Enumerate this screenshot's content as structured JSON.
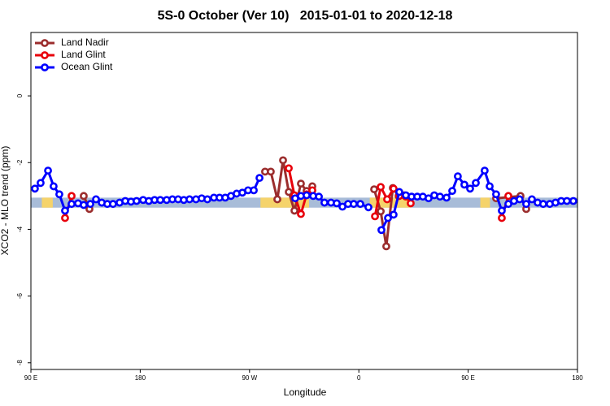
{
  "chart_data": {
    "type": "line",
    "title": "5S-0 October (Ver 10)   2015-01-01 to 2020-12-18",
    "xlabel": "Longitude",
    "ylabel": "XCO2 - MLO trend (ppm)",
    "xlim": [
      90,
      540
    ],
    "ylim": [
      -8.2,
      1.9
    ],
    "xticks": [
      {
        "value": 90,
        "label": "90 E"
      },
      {
        "value": 180,
        "label": "180"
      },
      {
        "value": 270,
        "label": "90 W"
      },
      {
        "value": 360,
        "label": "0"
      },
      {
        "value": 450,
        "label": "90 E"
      },
      {
        "value": 540,
        "label": "180"
      }
    ],
    "yticks": [
      0,
      -2,
      -4,
      -6,
      -8
    ],
    "legend": "top-left",
    "band": [
      -3.35,
      -3.05
    ],
    "band_color": "#a8bcd8",
    "highlights": [
      [
        99,
        108
      ],
      [
        279,
        319
      ],
      [
        369,
        403
      ],
      [
        460,
        468
      ]
    ],
    "highlight_color": "#f5d36b",
    "series": [
      {
        "name": "Land Nadir",
        "color": "#9b2d2d",
        "x": [
          133.5,
          138.2,
          null,
          282.8,
          287.5,
          292.9,
          297.6,
          302.3,
          307.0,
          312.3,
          317.0,
          321.7,
          null,
          372.6,
          378.0,
          382.6,
          388.0,
          392.7,
          397.4,
          null,
          473.0,
          493.1,
          497.8
        ],
        "values": [
          -3.0,
          -3.39,
          null,
          -2.27,
          -2.27,
          -3.1,
          -1.93,
          -2.88,
          -3.44,
          -2.63,
          -2.85,
          -2.71,
          null,
          -2.8,
          -3.46,
          -4.51,
          -2.76,
          -3.0,
          -2.98,
          null,
          -3.07,
          -3.0,
          -3.39
        ]
      },
      {
        "name": "Land Glint",
        "color": "#e8000b",
        "x": [
          118.1,
          123.5,
          null,
          302.3,
          307.0,
          312.3,
          317.0,
          321.7,
          null,
          373.3,
          378.0,
          383.3,
          388.6,
          393.3,
          398.7,
          402.7,
          null,
          477.7,
          483.1
        ],
        "values": [
          -3.66,
          -3.0,
          null,
          -2.17,
          -2.98,
          -3.54,
          -2.95,
          -2.83,
          null,
          -3.61,
          -2.73,
          -3.1,
          -2.78,
          -3.0,
          -3.02,
          -3.22,
          null,
          -3.66,
          -3.0
        ]
      },
      {
        "name": "Ocean Glint",
        "color": "#0000ff",
        "x": [
          93.3,
          98.0,
          104.1,
          108.7,
          113.4,
          118.1,
          123.5,
          128.8,
          133.5,
          138.9,
          143.6,
          148.3,
          152.9,
          157.6,
          163.0,
          167.7,
          172.4,
          177.0,
          182.4,
          187.1,
          191.8,
          196.5,
          201.8,
          206.5,
          211.2,
          215.9,
          220.6,
          225.9,
          230.6,
          235.3,
          240.7,
          245.3,
          250.0,
          254.7,
          259.4,
          264.1,
          268.8,
          273.5,
          278.2,
          null,
          307.6,
          312.3,
          317.0,
          322.4,
          327.1,
          331.7,
          337.1,
          341.8,
          346.5,
          351.1,
          355.8,
          361.2,
          367.9,
          null,
          378.6,
          384.0,
          388.6,
          393.3,
          398.7,
          403.4,
          408.1,
          412.7,
          417.4,
          422.1,
          426.8,
          432.2,
          436.9,
          441.5,
          446.9,
          451.6,
          456.3,
          463.6,
          467.7,
          473.0,
          477.7,
          483.1,
          487.7,
          492.4,
          497.8,
          502.5,
          507.2,
          511.8,
          517.2,
          521.9,
          526.6,
          531.3,
          536.6
        ],
        "values": [
          -2.78,
          -2.61,
          -2.24,
          -2.71,
          -2.95,
          -3.44,
          -3.24,
          -3.22,
          -3.27,
          -3.24,
          -3.1,
          -3.2,
          -3.24,
          -3.24,
          -3.2,
          -3.15,
          -3.17,
          -3.15,
          -3.12,
          -3.15,
          -3.12,
          -3.12,
          -3.12,
          -3.1,
          -3.1,
          -3.12,
          -3.1,
          -3.1,
          -3.07,
          -3.1,
          -3.05,
          -3.05,
          -3.05,
          -3.0,
          -2.93,
          -2.9,
          -2.83,
          -2.83,
          -2.46,
          null,
          -3.07,
          -3.0,
          -2.98,
          -3.0,
          -3.02,
          -3.2,
          -3.2,
          -3.22,
          -3.32,
          -3.24,
          -3.24,
          -3.24,
          -3.34,
          null,
          -4.02,
          -3.66,
          -3.56,
          -2.88,
          -2.98,
          -3.02,
          -3.02,
          -3.02,
          -3.07,
          -2.98,
          -3.02,
          -3.05,
          -2.85,
          -2.41,
          -2.66,
          -2.78,
          -2.61,
          -2.24,
          -2.71,
          -2.95,
          -3.44,
          -3.24,
          -3.15,
          -3.1,
          -3.24,
          -3.1,
          -3.2,
          -3.24,
          -3.24,
          -3.2,
          -3.15,
          -3.15,
          -3.15
        ]
      }
    ]
  }
}
